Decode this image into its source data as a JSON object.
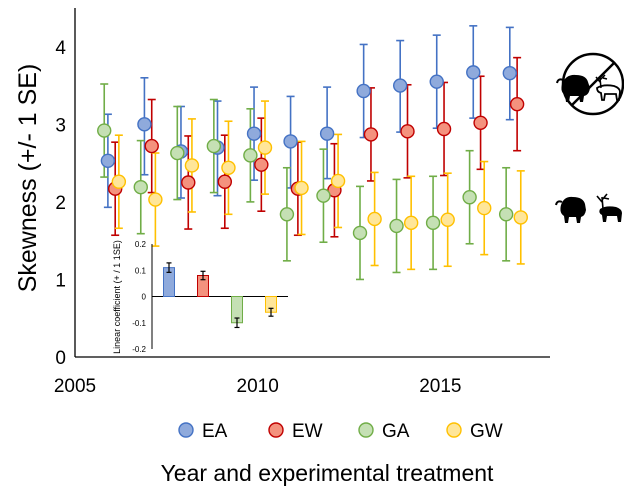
{
  "chart_data": {
    "type": "scatter",
    "ylabel": "Skewness (+/- 1 SE)",
    "xlabel": "Year and experimental treatment",
    "xlim": [
      2005,
      2018
    ],
    "ylim": [
      0,
      4.5
    ],
    "x_ticks": [
      "2005",
      "2010",
      "2015"
    ],
    "y_ticks": [
      "0",
      "1",
      "2",
      "3",
      "4"
    ],
    "legend_position": "bottom",
    "colors": {
      "EA": {
        "fill": "#8faadc",
        "stroke": "#4472c4"
      },
      "EW": {
        "fill": "#f4927e",
        "stroke": "#c00000"
      },
      "GA": {
        "fill": "#c5e0b4",
        "stroke": "#70ad47"
      },
      "GW": {
        "fill": "#ffe699",
        "stroke": "#ffc000"
      }
    },
    "series": [
      {
        "name": "EA",
        "points": [
          {
            "x": 2005.9,
            "y": 2.53,
            "lo": 1.93,
            "hi": 3.13
          },
          {
            "x": 2006.9,
            "y": 3.0,
            "lo": 2.35,
            "hi": 3.6
          },
          {
            "x": 2007.9,
            "y": 2.65,
            "lo": 2.05,
            "hi": 3.23
          },
          {
            "x": 2008.9,
            "y": 2.7,
            "lo": 2.08,
            "hi": 3.3
          },
          {
            "x": 2009.9,
            "y": 2.88,
            "lo": 2.28,
            "hi": 3.48
          },
          {
            "x": 2010.9,
            "y": 2.78,
            "lo": 2.18,
            "hi": 3.36
          },
          {
            "x": 2011.9,
            "y": 2.88,
            "lo": 2.3,
            "hi": 3.48
          },
          {
            "x": 2012.9,
            "y": 3.43,
            "lo": 2.83,
            "hi": 4.03
          },
          {
            "x": 2013.9,
            "y": 3.5,
            "lo": 2.9,
            "hi": 4.08
          },
          {
            "x": 2014.9,
            "y": 3.55,
            "lo": 2.95,
            "hi": 4.15
          },
          {
            "x": 2015.9,
            "y": 3.67,
            "lo": 3.08,
            "hi": 4.27
          },
          {
            "x": 2016.9,
            "y": 3.66,
            "lo": 3.06,
            "hi": 4.25
          }
        ]
      },
      {
        "name": "EW",
        "points": [
          {
            "x": 2006.1,
            "y": 2.17,
            "lo": 1.57,
            "hi": 2.77
          },
          {
            "x": 2007.1,
            "y": 2.72,
            "lo": 2.12,
            "hi": 3.32
          },
          {
            "x": 2008.1,
            "y": 2.25,
            "lo": 1.65,
            "hi": 2.85
          },
          {
            "x": 2009.1,
            "y": 2.26,
            "lo": 1.66,
            "hi": 2.86
          },
          {
            "x": 2010.1,
            "y": 2.48,
            "lo": 1.88,
            "hi": 3.08
          },
          {
            "x": 2011.1,
            "y": 2.17,
            "lo": 1.57,
            "hi": 2.77
          },
          {
            "x": 2012.1,
            "y": 2.15,
            "lo": 1.55,
            "hi": 2.75
          },
          {
            "x": 2013.1,
            "y": 2.87,
            "lo": 2.27,
            "hi": 3.47
          },
          {
            "x": 2014.1,
            "y": 2.91,
            "lo": 2.31,
            "hi": 3.51
          },
          {
            "x": 2015.1,
            "y": 2.94,
            "lo": 2.34,
            "hi": 3.54
          },
          {
            "x": 2016.1,
            "y": 3.02,
            "lo": 2.42,
            "hi": 3.62
          },
          {
            "x": 2017.1,
            "y": 3.26,
            "lo": 2.66,
            "hi": 3.86
          }
        ]
      },
      {
        "name": "GA",
        "points": [
          {
            "x": 2005.8,
            "y": 2.92,
            "lo": 2.32,
            "hi": 3.52
          },
          {
            "x": 2006.8,
            "y": 2.19,
            "lo": 1.59,
            "hi": 2.79
          },
          {
            "x": 2007.8,
            "y": 2.63,
            "lo": 2.03,
            "hi": 3.23
          },
          {
            "x": 2008.8,
            "y": 2.72,
            "lo": 2.12,
            "hi": 3.32
          },
          {
            "x": 2009.8,
            "y": 2.6,
            "lo": 2.0,
            "hi": 3.2
          },
          {
            "x": 2010.8,
            "y": 1.84,
            "lo": 1.24,
            "hi": 2.44
          },
          {
            "x": 2011.8,
            "y": 2.08,
            "lo": 1.48,
            "hi": 2.68
          },
          {
            "x": 2012.8,
            "y": 1.6,
            "lo": 1.0,
            "hi": 2.2
          },
          {
            "x": 2013.8,
            "y": 1.69,
            "lo": 1.09,
            "hi": 2.29
          },
          {
            "x": 2014.8,
            "y": 1.73,
            "lo": 1.13,
            "hi": 2.33
          },
          {
            "x": 2015.8,
            "y": 2.06,
            "lo": 1.46,
            "hi": 2.66
          },
          {
            "x": 2016.8,
            "y": 1.84,
            "lo": 1.24,
            "hi": 2.44
          }
        ]
      },
      {
        "name": "GW",
        "points": [
          {
            "x": 2006.2,
            "y": 2.26,
            "lo": 1.66,
            "hi": 2.86
          },
          {
            "x": 2007.2,
            "y": 2.03,
            "lo": 1.43,
            "hi": 2.63
          },
          {
            "x": 2008.2,
            "y": 2.47,
            "lo": 1.87,
            "hi": 3.07
          },
          {
            "x": 2009.2,
            "y": 2.44,
            "lo": 1.84,
            "hi": 3.04
          },
          {
            "x": 2010.2,
            "y": 2.7,
            "lo": 2.1,
            "hi": 3.3
          },
          {
            "x": 2011.2,
            "y": 2.18,
            "lo": 1.58,
            "hi": 2.78
          },
          {
            "x": 2012.2,
            "y": 2.27,
            "lo": 1.67,
            "hi": 2.87
          },
          {
            "x": 2013.2,
            "y": 1.78,
            "lo": 1.18,
            "hi": 2.38
          },
          {
            "x": 2014.2,
            "y": 1.73,
            "lo": 1.13,
            "hi": 2.33
          },
          {
            "x": 2015.2,
            "y": 1.77,
            "lo": 1.17,
            "hi": 2.37
          },
          {
            "x": 2016.2,
            "y": 1.92,
            "lo": 1.32,
            "hi": 2.52
          },
          {
            "x": 2017.2,
            "y": 1.8,
            "lo": 1.2,
            "hi": 2.4
          }
        ]
      }
    ],
    "inset": {
      "type": "bar",
      "ylabel": "Linear coefficient (+ / 1 1SE)",
      "ylim": [
        -0.2,
        0.2
      ],
      "y_ticks": [
        "0.2",
        "0.1",
        "0",
        "-0.1",
        "-0.2"
      ],
      "categories": [
        "EA",
        "EW",
        "GA",
        "GW"
      ],
      "values": [
        0.11,
        0.08,
        -0.1,
        -0.06
      ],
      "errors": [
        0.018,
        0.016,
        0.018,
        0.015
      ]
    },
    "icons": [
      "muskox-icon",
      "caribou-icon",
      "exclusion-sign-icon"
    ]
  }
}
